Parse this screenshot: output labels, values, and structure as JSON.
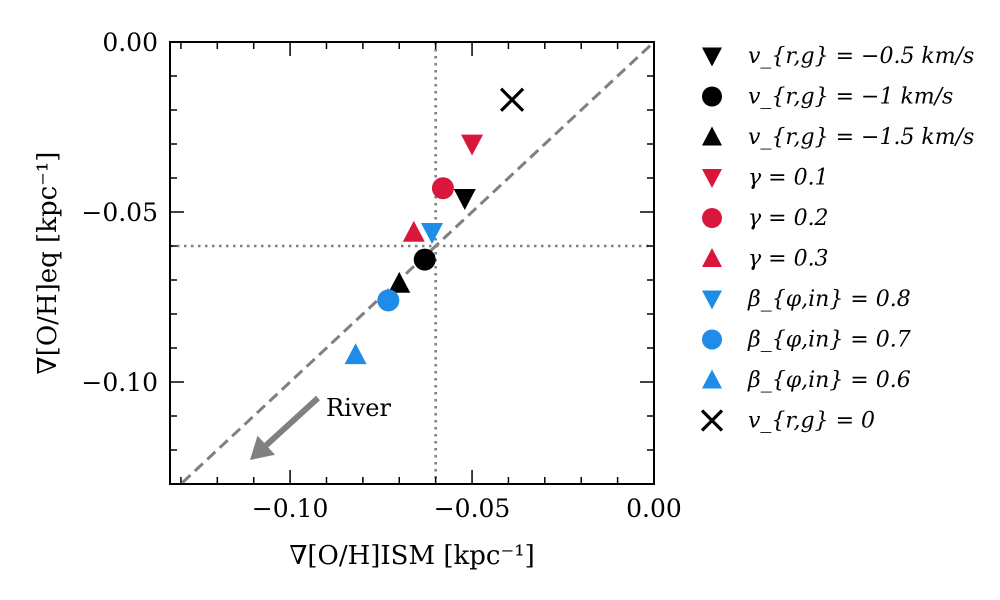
{
  "chart_data": {
    "type": "scatter",
    "xlabel": "∇[O/H]ISM [kpc⁻¹]",
    "ylabel": "∇[O/H]eq [kpc⁻¹]",
    "xlim": [
      -0.133,
      0.0
    ],
    "ylim": [
      -0.13,
      0.0
    ],
    "xticks": [
      -0.1,
      -0.05,
      0.0
    ],
    "xtick_labels": [
      "−0.10",
      "−0.05",
      "0.00"
    ],
    "yticks": [
      0.0,
      -0.05,
      -0.1
    ],
    "ytick_labels": [
      "0.00",
      "−0.05",
      "−0.10"
    ],
    "reference_lines": {
      "diagonal": "y = x",
      "vertical_x": -0.06,
      "horizontal_y": -0.06
    },
    "annotation": {
      "text": "River",
      "arrow": "toward lower-left"
    },
    "legend_placement": "outside-right",
    "grid": false,
    "series": [
      {
        "name": "v_{r,g} = −0.5 km/s",
        "marker": "triangle-down",
        "color": "#000000",
        "x": [
          -0.052
        ],
        "y": [
          -0.046
        ]
      },
      {
        "name": "v_{r,g} = −1 km/s",
        "marker": "circle",
        "color": "#000000",
        "x": [
          -0.063
        ],
        "y": [
          -0.064
        ]
      },
      {
        "name": "v_{r,g} = −1.5 km/s",
        "marker": "triangle-up",
        "color": "#000000",
        "x": [
          -0.07
        ],
        "y": [
          -0.071
        ]
      },
      {
        "name": "γ = 0.1",
        "marker": "triangle-down",
        "color": "#d9163b",
        "x": [
          -0.05
        ],
        "y": [
          -0.03
        ]
      },
      {
        "name": "γ = 0.2",
        "marker": "circle",
        "color": "#d9163b",
        "x": [
          -0.058
        ],
        "y": [
          -0.043
        ]
      },
      {
        "name": "γ = 0.3",
        "marker": "triangle-up",
        "color": "#d9163b",
        "x": [
          -0.066
        ],
        "y": [
          -0.056
        ]
      },
      {
        "name": "β_{φ,in} = 0.8",
        "marker": "triangle-down",
        "color": "#1f8ce8",
        "x": [
          -0.061
        ],
        "y": [
          -0.056
        ]
      },
      {
        "name": "β_{φ,in} = 0.7",
        "marker": "circle",
        "color": "#1f8ce8",
        "x": [
          -0.073
        ],
        "y": [
          -0.076
        ]
      },
      {
        "name": "β_{φ,in} = 0.6",
        "marker": "triangle-up",
        "color": "#1f8ce8",
        "x": [
          -0.082
        ],
        "y": [
          -0.092
        ]
      },
      {
        "name": "v_{r,g} = 0",
        "marker": "x",
        "color": "#000000",
        "x": [
          -0.039
        ],
        "y": [
          -0.017
        ]
      }
    ]
  }
}
